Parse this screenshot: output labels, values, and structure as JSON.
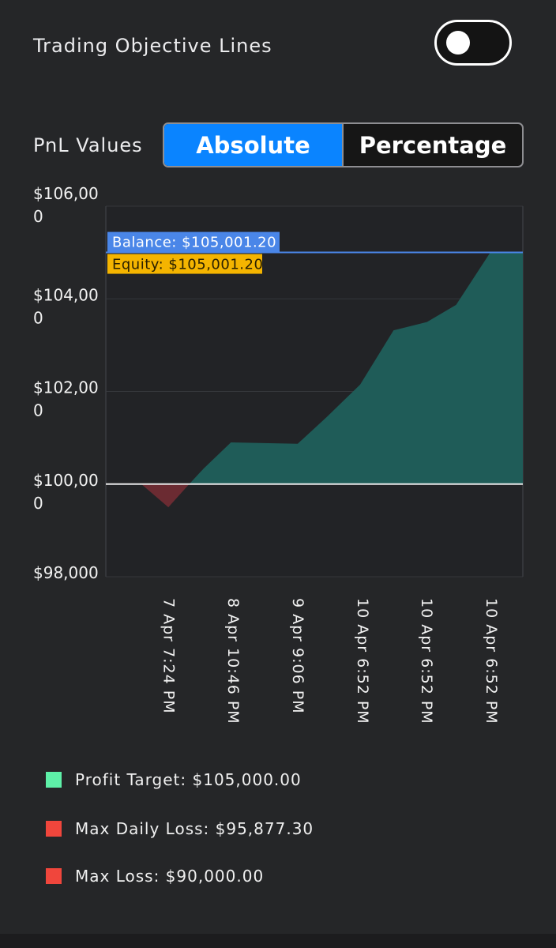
{
  "toggle": {
    "label": "Trading Objective Lines",
    "on": false
  },
  "pnl": {
    "label": "PnL Values",
    "options": [
      "Absolute",
      "Percentage"
    ],
    "selected": "Absolute"
  },
  "colors": {
    "background": "#252628",
    "area_positive": "#1f5c58",
    "area_negative": "#6b2b32",
    "balance": "#4a86e8",
    "equity": "#f4b400",
    "grid": "#35373b",
    "profit_target": "#5ef0a8",
    "loss": "#f0463c",
    "accent": "#0a84ff"
  },
  "chart_data": {
    "type": "area",
    "ylim": [
      98000,
      106000
    ],
    "yticks": [
      {
        "value": 106000,
        "lines": [
          "$106,00",
          "0"
        ]
      },
      {
        "value": 104000,
        "lines": [
          "$104,00",
          "0"
        ]
      },
      {
        "value": 102000,
        "lines": [
          "$102,00",
          "0"
        ]
      },
      {
        "value": 100000,
        "lines": [
          "$100,00",
          "0"
        ]
      },
      {
        "value": 98000,
        "lines": [
          "$98,000"
        ]
      }
    ],
    "x_labels": [
      "7 Apr 7:24 PM",
      "8 Apr 10:46 PM",
      "9 Apr 9:06 PM",
      "10 Apr 6:52 PM",
      "10 Apr 6:52 PM",
      "10 Apr 6:52 PM"
    ],
    "x_label_positions": [
      0.154,
      0.309,
      0.464,
      0.619,
      0.773,
      0.928
    ],
    "baseline": 100000,
    "series": [
      {
        "x": 0.0,
        "y": 100000
      },
      {
        "x": 0.085,
        "y": 100000
      },
      {
        "x": 0.15,
        "y": 99500
      },
      {
        "x": 0.2,
        "y": 100000
      },
      {
        "x": 0.235,
        "y": 100340
      },
      {
        "x": 0.3,
        "y": 100900
      },
      {
        "x": 0.46,
        "y": 100870
      },
      {
        "x": 0.53,
        "y": 101450
      },
      {
        "x": 0.61,
        "y": 102150
      },
      {
        "x": 0.69,
        "y": 103320
      },
      {
        "x": 0.77,
        "y": 103500
      },
      {
        "x": 0.84,
        "y": 103870
      },
      {
        "x": 0.922,
        "y": 105001.2
      },
      {
        "x": 1.0,
        "y": 105001.2
      }
    ],
    "balance": {
      "value": 105001.2,
      "label": "Balance: $105,001.20"
    },
    "equity": {
      "value": 105001.2,
      "label": "Equity: $105,001.20"
    }
  },
  "legend": [
    {
      "label": "Profit Target: $105,000.00",
      "color": "#5ef0a8"
    },
    {
      "label": "Max Daily Loss: $95,877.30",
      "color": "#f0463c"
    },
    {
      "label": "Max Loss: $90,000.00",
      "color": "#f0463c"
    }
  ]
}
